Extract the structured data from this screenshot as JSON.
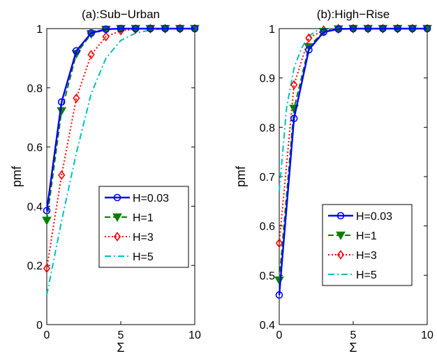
{
  "chart_data": [
    {
      "type": "line",
      "title": "(a):Sub−Urban",
      "xlabel": "Σ",
      "ylabel": "pmf",
      "xlim": [
        0,
        10
      ],
      "ylim": [
        0,
        1
      ],
      "xticks": [
        "0",
        "5",
        "10"
      ],
      "yticks": [
        "0",
        "0.2",
        "0.4",
        "0.6",
        "0.8",
        "1"
      ],
      "ytick_values": [
        0,
        0.2,
        0.4,
        0.6,
        0.8,
        1
      ],
      "xtick_values": [
        0,
        5,
        10
      ],
      "legend_position": "lower-right",
      "series": [
        {
          "name": "H=0.03",
          "color": "#0000ff",
          "style": "solid",
          "marker": "circle",
          "x": [
            0,
            1,
            2,
            3,
            4,
            5,
            6,
            7,
            8,
            9,
            10
          ],
          "y": [
            0.385,
            0.752,
            0.925,
            0.985,
            0.998,
            1,
            1,
            1,
            1,
            1,
            1
          ]
        },
        {
          "name": "H=1",
          "color": "#008000",
          "style": "dashed",
          "marker": "triangle-down",
          "x": [
            0,
            1,
            2,
            3,
            4,
            5,
            6,
            7,
            8,
            9,
            10
          ],
          "y": [
            0.352,
            0.722,
            0.915,
            0.982,
            0.997,
            1,
            1,
            1,
            1,
            1,
            1
          ]
        },
        {
          "name": "H=3",
          "color": "#ff0000",
          "style": "dotted",
          "marker": "diamond",
          "x": [
            0,
            1,
            2,
            3,
            4,
            5,
            6,
            7,
            8,
            9,
            10
          ],
          "y": [
            0.19,
            0.505,
            0.765,
            0.912,
            0.973,
            0.993,
            0.998,
            1,
            1,
            1,
            1
          ]
        },
        {
          "name": "H=5",
          "color": "#00bfbf",
          "style": "dashdot",
          "marker": "none",
          "x": [
            0,
            1,
            2,
            3,
            4,
            5,
            6,
            7,
            8,
            9,
            10
          ],
          "y": [
            0.1,
            0.35,
            0.58,
            0.78,
            0.9,
            0.96,
            0.985,
            0.995,
            1,
            1,
            1
          ]
        }
      ]
    },
    {
      "type": "line",
      "title": "(b):High−Rise",
      "xlabel": "Σ",
      "ylabel": "pmf",
      "xlim": [
        0,
        10
      ],
      "ylim": [
        0.4,
        1
      ],
      "xticks": [
        "0",
        "5",
        "10"
      ],
      "yticks": [
        "0.4",
        "0.5",
        "0.6",
        "0.7",
        "0.8",
        "0.9",
        "1"
      ],
      "ytick_values": [
        0.4,
        0.5,
        0.6,
        0.7,
        0.8,
        0.9,
        1
      ],
      "xtick_values": [
        0,
        5,
        10
      ],
      "legend_position": "lower-right",
      "series": [
        {
          "name": "H=0.03",
          "color": "#0000ff",
          "style": "solid",
          "marker": "circle",
          "x": [
            0,
            1,
            2,
            3,
            4,
            5,
            6,
            7,
            8,
            9,
            10
          ],
          "y": [
            0.46,
            0.818,
            0.957,
            0.993,
            0.999,
            1,
            1,
            1,
            1,
            1,
            1
          ]
        },
        {
          "name": "H=1",
          "color": "#008000",
          "style": "dashed",
          "marker": "triangle-down",
          "x": [
            0,
            1,
            2,
            3,
            4,
            5,
            6,
            7,
            8,
            9,
            10
          ],
          "y": [
            0.49,
            0.838,
            0.963,
            0.994,
            0.999,
            1,
            1,
            1,
            1,
            1,
            1
          ]
        },
        {
          "name": "H=3",
          "color": "#ff0000",
          "style": "dotted",
          "marker": "diamond",
          "x": [
            0,
            1,
            2,
            3,
            4,
            5,
            6,
            7,
            8,
            9,
            10
          ],
          "y": [
            0.565,
            0.886,
            0.981,
            0.997,
            1,
            1,
            1,
            1,
            1,
            1,
            1
          ]
        },
        {
          "name": "H=5",
          "color": "#00bfbf",
          "style": "dashdot",
          "marker": "none",
          "x": [
            0,
            0.5,
            1,
            1.5,
            2,
            2.5,
            3,
            4,
            5,
            6,
            7,
            8,
            9,
            10
          ],
          "y": [
            0.67,
            0.84,
            0.92,
            0.96,
            0.985,
            0.995,
            0.999,
            1,
            1,
            1,
            1,
            1,
            1,
            1
          ]
        }
      ]
    }
  ]
}
